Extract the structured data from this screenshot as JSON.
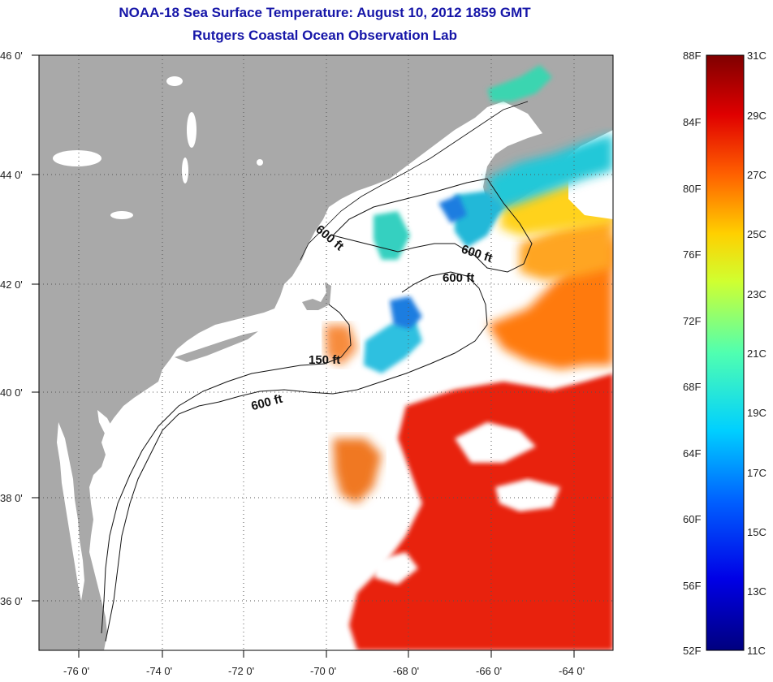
{
  "title": "NOAA-18 Sea Surface Temperature:  August 10, 2012 1859 GMT",
  "subtitle": "Rutgers Coastal Ocean Observation Lab",
  "lon_labels": [
    "-76 0'",
    "-74 0'",
    "-72 0'",
    "-70 0'",
    "-68 0'",
    "-66 0'",
    "-64 0'"
  ],
  "lat_labels": [
    "46 0'",
    "44 0'",
    "42 0'",
    "40 0'",
    "38 0'",
    "36 0'"
  ],
  "contours": [
    "600 ft",
    "600 ft",
    "600 ft",
    "150 ft",
    "600 ft"
  ],
  "colorbar": {
    "fahrenheit": [
      "88F",
      "84F",
      "80F",
      "76F",
      "72F",
      "68F",
      "64F",
      "60F",
      "56F",
      "52F"
    ],
    "celsius": [
      "31C",
      "29C",
      "27C",
      "25C",
      "23C",
      "21C",
      "19C",
      "17C",
      "15C",
      "13C",
      "11C"
    ]
  },
  "colors": {
    "title": "#1616a8",
    "land": "#a9a9a9",
    "ocean": "#ffffff",
    "sst_warm": "#e81a0c",
    "sst_cool": "#22b8d8"
  }
}
